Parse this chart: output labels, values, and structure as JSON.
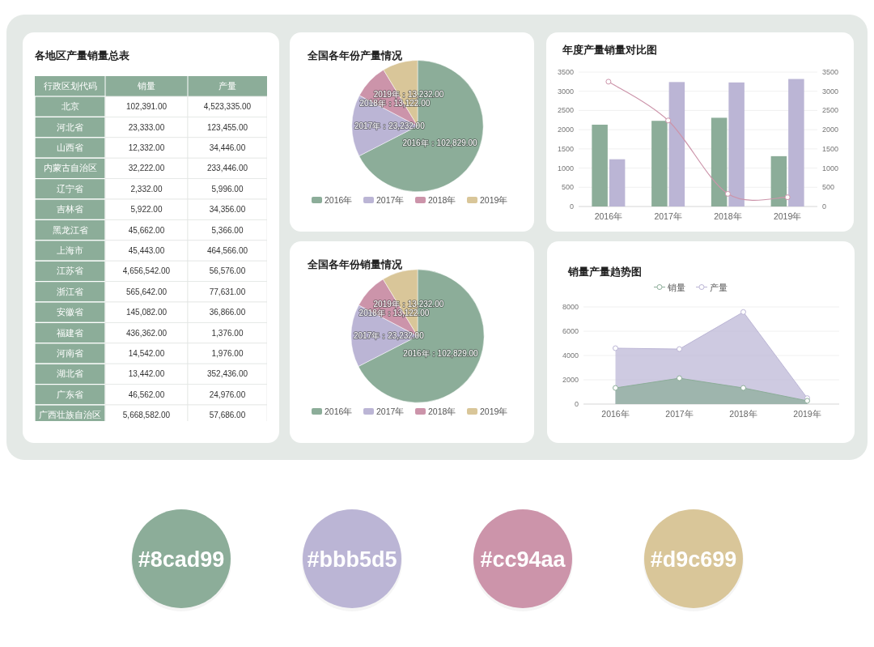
{
  "chart_data": [
    {
      "type": "other",
      "title": "各地区产量销量总表",
      "ylabel": "行政区划代码",
      "categories": [
        "北京",
        "河北省",
        "山西省",
        "内蒙古自治区",
        "辽宁省",
        "吉林省",
        "黑龙江省",
        "上海市",
        "江苏省",
        "浙江省",
        "安徽省",
        "福建省",
        "河南省",
        "湖北省",
        "广东省",
        "广西壮族自治区"
      ],
      "series": [
        {
          "name": "销量",
          "values": [
            102391,
            23333,
            12332,
            32222,
            2332,
            5922,
            45662,
            45443,
            4656542,
            565642,
            145082,
            436362,
            14542,
            13442,
            46562,
            5668582
          ],
          "value_labels": [
            "102,391.00",
            "23,333.00",
            "12,332.00",
            "32,222.00",
            "2,332.00",
            "5,922.00",
            "45,662.00",
            "45,443.00",
            "4,656,542.00",
            "565,642.00",
            "145,082.00",
            "436,362.00",
            "14,542.00",
            "13,442.00",
            "46,562.00",
            "5,668,582.00"
          ]
        },
        {
          "name": "产量",
          "values": [
            4523335,
            123455,
            34446,
            233446,
            5996,
            34356,
            5366,
            464566,
            56576,
            77631,
            36866,
            1376,
            1976,
            352436,
            24976,
            57686
          ],
          "value_labels": [
            "4,523,335.00",
            "123,455.00",
            "34,446.00",
            "233,446.00",
            "5,996.00",
            "34,356.00",
            "5,366.00",
            "464,566.00",
            "56,576.00",
            "77,631.00",
            "36,866.00",
            "1,376.00",
            "1,976.00",
            "352,436.00",
            "24,976.00",
            "57,686.00"
          ]
        }
      ]
    },
    {
      "type": "pie",
      "title": "全国各年份产量情况",
      "categories": [
        "2016年",
        "2017年",
        "2018年",
        "2019年"
      ],
      "values": [
        102829,
        23232,
        13122,
        13232
      ],
      "colors": [
        "#8cad99",
        "#bbb5d5",
        "#cc94aa",
        "#d9c699"
      ],
      "value_labels": [
        "2016年：102,829.00",
        "2017年：23,232.00",
        "2018年：13,122.00",
        "2019年：13,232.00"
      ],
      "legend": "bottom"
    },
    {
      "type": "bar",
      "title": "年度产量销量对比图",
      "categories": [
        "2016年",
        "2017年",
        "2018年",
        "2019年"
      ],
      "series": [
        {
          "color": "#8cad99",
          "values": [
            2130,
            2230,
            2310,
            1310
          ]
        },
        {
          "color": "#bbb5d5",
          "values": [
            1230,
            3240,
            3230,
            3320
          ]
        },
        {
          "type": "line",
          "axis": "y2",
          "color": "#cc94aa",
          "marker": "circle",
          "values": [
            3250,
            2240,
            330,
            240
          ]
        }
      ],
      "ylim": [
        0,
        3500
      ],
      "yticks": [
        0,
        500,
        1000,
        1500,
        2000,
        2500,
        3000,
        3500
      ],
      "y2lim": [
        0,
        3500
      ],
      "y2ticks": [
        0,
        500,
        1000,
        1500,
        2000,
        2500,
        3000,
        3500
      ],
      "grid": "y"
    },
    {
      "type": "pie",
      "title": "全国各年份销量情况",
      "categories": [
        "2016年",
        "2017年",
        "2018年",
        "2019年"
      ],
      "values": [
        102829,
        23232,
        13122,
        13232
      ],
      "colors": [
        "#8cad99",
        "#bbb5d5",
        "#cc94aa",
        "#d9c699"
      ],
      "value_labels": [
        "2016年：102,829.00",
        "2017年：23,232.00",
        "2018年：13,122.00",
        "2019年：13,232.00"
      ],
      "legend": "bottom"
    },
    {
      "type": "area",
      "title": "销量产量趋势图",
      "categories": [
        "2016年",
        "2017年",
        "2018年",
        "2019年"
      ],
      "series": [
        {
          "name": "销量",
          "color": "#8cad99",
          "values": [
            1330,
            2130,
            1330,
            270
          ]
        },
        {
          "name": "产量",
          "color": "#bbb5d5",
          "values": [
            4600,
            4530,
            7580,
            490
          ]
        }
      ],
      "ylim": [
        0,
        8000
      ],
      "yticks": [
        0,
        2000,
        4000,
        6000,
        8000
      ],
      "grid": "y",
      "legend": "top",
      "marker": "circle"
    },
    {
      "type": "other",
      "categories": [
        "#8cad99",
        "#bbb5d5",
        "#cc94aa",
        "#d9c699"
      ],
      "colors": [
        "#8cad99",
        "#bbb5d5",
        "#cc94aa",
        "#d9c699"
      ]
    }
  ]
}
